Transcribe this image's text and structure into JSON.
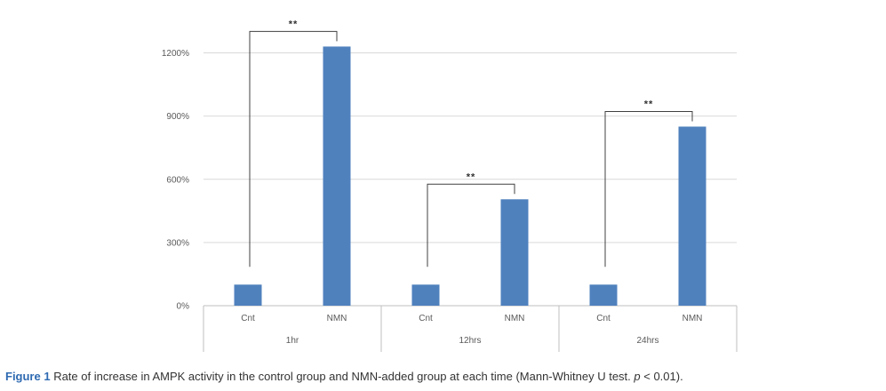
{
  "chart_data": {
    "type": "bar",
    "title": "",
    "xlabel": "",
    "ylabel": "",
    "ylim": [
      0,
      1300
    ],
    "yticks": [
      0,
      300,
      600,
      900,
      1200
    ],
    "ytick_labels": [
      "0%",
      "300%",
      "600%",
      "900%",
      "1200%"
    ],
    "grid": true,
    "groups": [
      {
        "label": "1hr",
        "bars": [
          {
            "category": "Cnt",
            "value": 100
          },
          {
            "category": "NMN",
            "value": 1230
          }
        ],
        "significance": "**"
      },
      {
        "label": "12hrs",
        "bars": [
          {
            "category": "Cnt",
            "value": 100
          },
          {
            "category": "NMN",
            "value": 505
          }
        ],
        "significance": "**"
      },
      {
        "label": "24hrs",
        "bars": [
          {
            "category": "Cnt",
            "value": 100
          },
          {
            "category": "NMN",
            "value": 850
          }
        ],
        "significance": "**"
      }
    ],
    "colors": {
      "bar": "#4f81bd",
      "grid": "#d9d9d9",
      "axis": "#bfbfbf",
      "bracket": "#404040"
    }
  },
  "caption": {
    "figure_label": "Figure 1",
    "text_before_p": " Rate of increase in AMPK activity in the control group and NMN-added group at each time (Mann-Whitney U test. ",
    "p_symbol": "p",
    "text_after_p": " < 0.01)."
  }
}
